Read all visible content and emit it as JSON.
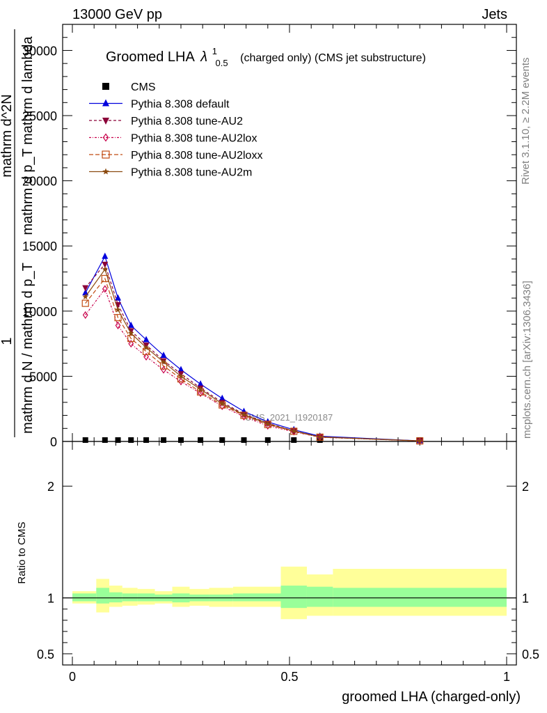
{
  "header": {
    "energy_label": "13000 GeV pp",
    "process_label": "Jets"
  },
  "side": {
    "rivet_label": "Rivet 3.1.10, ≥ 2.2M events",
    "mcplots_label": "mcplots.cern.ch [arXiv:1306.3436]"
  },
  "chart_data": {
    "type": "line",
    "title_prefix": "Groomed LHA",
    "title_symbol": "λ",
    "title_sup": "1",
    "title_sub": "0.5",
    "title_suffix": "(charged only) (CMS jet substructure)",
    "watermark": "CMS_2021_I1920187",
    "ylabel_main_parts": [
      "1",
      "mathrm d N / mathrm d p_T",
      "mathrm d^2N",
      "mathrm d p_T mathrm d lambda"
    ],
    "ylabel_ratio": "Ratio to CMS",
    "xlabel": "groomed LHA (charged-only)",
    "xlim": [
      0,
      1
    ],
    "ylim_main": [
      0,
      32000
    ],
    "ylim_ratio": [
      0.4,
      2.4
    ],
    "x_ticks": [
      0,
      0.5,
      1
    ],
    "x_tick_labels": [
      "0",
      "0.5",
      "1"
    ],
    "y_ticks_main": [
      0,
      5000,
      10000,
      15000,
      20000,
      25000,
      30000
    ],
    "y_tick_labels_main": [
      "0",
      "5000",
      "10000",
      "15000",
      "20000",
      "25000",
      "30000"
    ],
    "y_ticks_ratio": [
      0.5,
      1,
      2
    ],
    "y_tick_labels_ratio": [
      "0.5",
      "1",
      "2"
    ],
    "x": [
      0.03,
      0.075,
      0.105,
      0.135,
      0.17,
      0.21,
      0.25,
      0.295,
      0.345,
      0.395,
      0.45,
      0.51,
      0.57,
      0.8
    ],
    "series": [
      {
        "name": "CMS",
        "color": "#000000",
        "marker": "square",
        "values": [
          40,
          50,
          40,
          35,
          30,
          28,
          25,
          20,
          18,
          15,
          12,
          10,
          8,
          3
        ]
      },
      {
        "name": "Pythia 8.308 default",
        "color": "#0000dd",
        "marker": "triangle-up",
        "dash": "",
        "values": [
          11400,
          14200,
          11000,
          8900,
          7800,
          6600,
          5500,
          4400,
          3300,
          2300,
          1500,
          900,
          400,
          50
        ]
      },
      {
        "name": "Pythia 8.308 tune-AU2",
        "color": "#8b0038",
        "marker": "triangle-down",
        "dash": "4,3",
        "values": [
          11800,
          13600,
          10500,
          8500,
          7400,
          6200,
          5200,
          4100,
          3000,
          2100,
          1400,
          800,
          350,
          45
        ]
      },
      {
        "name": "Pythia 8.308 tune-AU2lox",
        "color": "#c8004a",
        "marker": "diamond",
        "dash": "3,2,1,2",
        "values": [
          9700,
          11700,
          8900,
          7500,
          6500,
          5500,
          4600,
          3700,
          2700,
          1900,
          1200,
          750,
          320,
          40
        ]
      },
      {
        "name": "Pythia 8.308 tune-AU2loxx",
        "color": "#c04a10",
        "marker": "square-open",
        "dash": "6,3",
        "values": [
          10600,
          12500,
          9500,
          7900,
          6900,
          5800,
          4800,
          3800,
          2800,
          2000,
          1300,
          780,
          330,
          42
        ]
      },
      {
        "name": "Pythia 8.308 tune-AU2m",
        "color": "#8b4a10",
        "marker": "star",
        "dash": "",
        "values": [
          11100,
          13200,
          10100,
          8300,
          7200,
          6100,
          5000,
          4000,
          2900,
          2050,
          1350,
          800,
          340,
          44
        ]
      }
    ],
    "ratio_band_edges": [
      0,
      0.055,
      0.085,
      0.115,
      0.15,
      0.19,
      0.23,
      0.27,
      0.315,
      0.37,
      0.48,
      0.54,
      0.6,
      1.0
    ],
    "ratio_band_inner": [
      [
        0.97,
        1.04
      ],
      [
        0.95,
        1.09
      ],
      [
        0.96,
        1.05
      ],
      [
        0.97,
        1.04
      ],
      [
        0.97,
        1.04
      ],
      [
        0.97,
        1.03
      ],
      [
        0.96,
        1.04
      ],
      [
        0.97,
        1.03
      ],
      [
        0.97,
        1.03
      ],
      [
        0.97,
        1.04
      ],
      [
        0.91,
        1.11
      ],
      [
        0.92,
        1.1
      ],
      [
        0.92,
        1.09
      ]
    ],
    "ratio_band_outer": [
      [
        0.95,
        1.06
      ],
      [
        0.87,
        1.17
      ],
      [
        0.92,
        1.11
      ],
      [
        0.93,
        1.09
      ],
      [
        0.94,
        1.08
      ],
      [
        0.95,
        1.06
      ],
      [
        0.92,
        1.1
      ],
      [
        0.93,
        1.08
      ],
      [
        0.92,
        1.09
      ],
      [
        0.92,
        1.1
      ],
      [
        0.81,
        1.28
      ],
      [
        0.84,
        1.21
      ],
      [
        0.84,
        1.26
      ]
    ],
    "ratio_reference": 1,
    "legend_position": "top-left"
  }
}
